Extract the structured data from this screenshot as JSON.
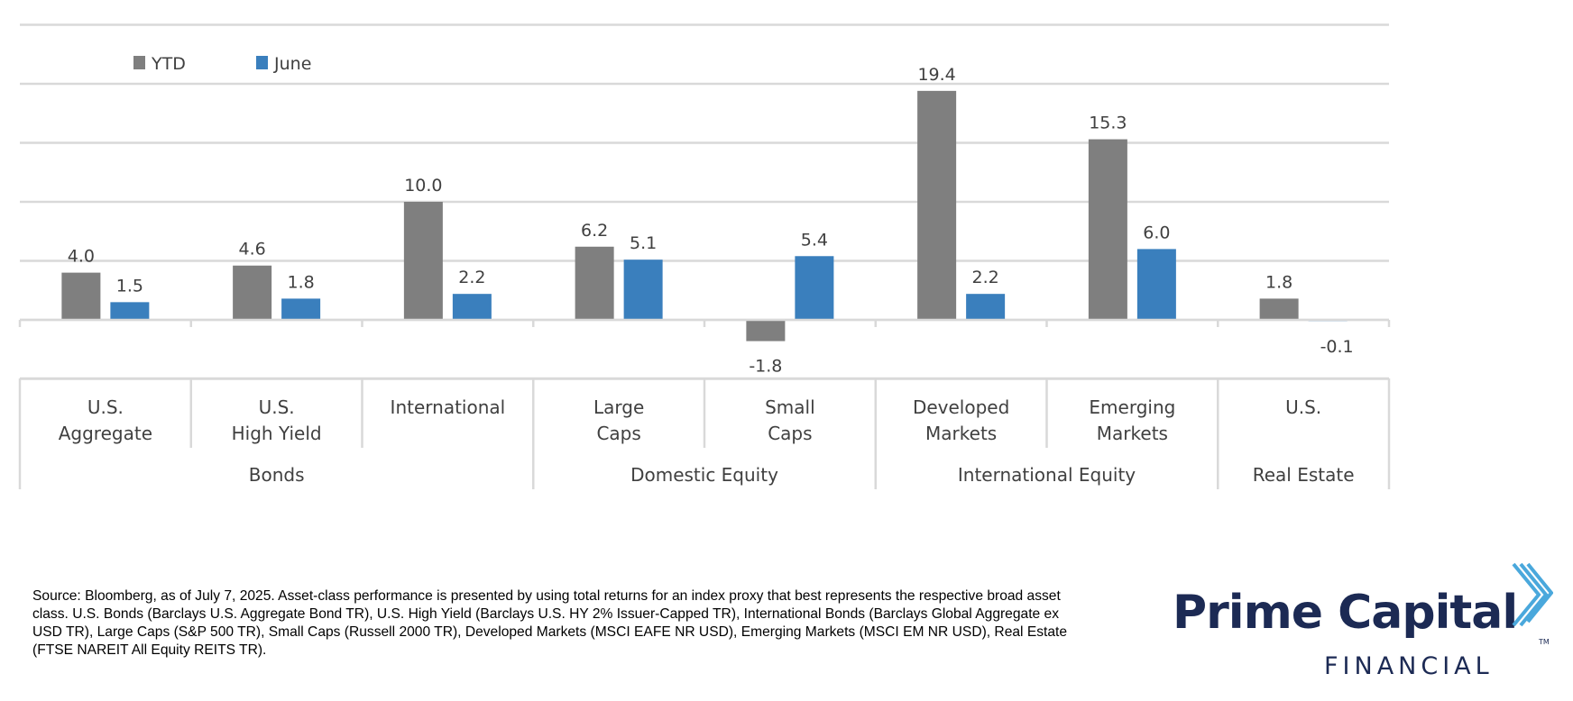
{
  "chart_data": {
    "type": "bar",
    "legend": {
      "placement": "top-left",
      "entries": [
        "YTD",
        "June"
      ]
    },
    "series": [
      {
        "name": "YTD",
        "color": "#7f7f7f",
        "values": [
          4.0,
          4.6,
          10.0,
          6.2,
          -1.8,
          19.4,
          15.3,
          1.8
        ]
      },
      {
        "name": "June",
        "color": "#3a7fbd",
        "values": [
          1.5,
          1.8,
          2.2,
          5.1,
          5.4,
          2.2,
          6.0,
          -0.1
        ]
      }
    ],
    "value_labels": {
      "YTD": [
        "4.0",
        "4.6",
        "10.0",
        "6.2",
        "-1.8",
        "19.4",
        "15.3",
        "1.8"
      ],
      "June": [
        "1.5",
        "1.8",
        "2.2",
        "5.1",
        "5.4",
        "2.2",
        "6.0",
        "-0.1"
      ]
    },
    "categories": [
      {
        "lines": [
          "U.S.",
          "Aggregate"
        ]
      },
      {
        "lines": [
          "U.S.",
          "High Yield"
        ]
      },
      {
        "lines": [
          "International"
        ]
      },
      {
        "lines": [
          "Large",
          "Caps"
        ]
      },
      {
        "lines": [
          "Small",
          "Caps"
        ]
      },
      {
        "lines": [
          "Developed",
          "Markets"
        ]
      },
      {
        "lines": [
          "Emerging",
          "Markets"
        ]
      },
      {
        "lines": [
          "U.S."
        ]
      }
    ],
    "groups": [
      {
        "label": "Bonds",
        "span": [
          0,
          2
        ]
      },
      {
        "label": "Domestic Equity",
        "span": [
          3,
          4
        ]
      },
      {
        "label": "International Equity",
        "span": [
          5,
          6
        ]
      },
      {
        "label": "Real Estate",
        "span": [
          7,
          7
        ]
      }
    ],
    "ylim": [
      -5,
      25
    ],
    "grid": true
  },
  "footer": {
    "source_text": "Source: Bloomberg, as of July 7, 2025. Asset-class performance is presented by using total returns for an index proxy that best represents the respective broad asset class. U.S. Bonds (Barclays U.S. Aggregate Bond TR), U.S. High Yield (Barclays U.S. HY 2% Issuer-Capped TR), International Bonds (Barclays Global Aggregate ex USD TR), Large Caps (S&P 500 TR), Small Caps (Russell 2000 TR), Developed Markets (MSCI EAFE NR USD), Emerging Markets (MSCI EM NR USD), Real Estate (FTSE NAREIT All Equity REITS TR)."
  },
  "logo": {
    "name": "Prime Capital",
    "subtitle": "FINANCIAL",
    "mark_color": "#4aa8dc",
    "text_color": "#1c2a54"
  }
}
